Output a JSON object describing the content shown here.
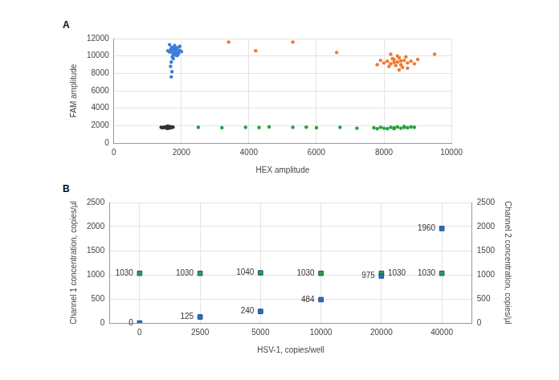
{
  "chart_data": [
    {
      "type": "scatter",
      "title": "A",
      "xlabel": "HEX amplitude",
      "ylabel": "FAM amplitude",
      "xlim": [
        0,
        10000
      ],
      "xticks": [
        0,
        2000,
        4000,
        6000,
        8000,
        10000
      ],
      "ylim": [
        0,
        12000
      ],
      "yticks": [
        0,
        2000,
        4000,
        6000,
        8000,
        10000,
        12000
      ],
      "grid": true,
      "series": [
        {
          "color": "#3b7dd8",
          "x": [
            1800,
            1750,
            1850,
            1700,
            1900,
            1780,
            1820,
            1650,
            1950,
            1720,
            1880,
            1760,
            1840,
            1690,
            1910,
            1800,
            1730,
            1870,
            1600,
            2000,
            1790,
            1810,
            1760,
            1700,
            1680,
            1720,
            1700,
            1650,
            1950,
            1830
          ],
          "y": [
            10500,
            10300,
            10700,
            10600,
            10400,
            10900,
            10100,
            10450,
            10650,
            11000,
            10950,
            10200,
            10550,
            10800,
            10250,
            11200,
            9900,
            10050,
            10600,
            10500,
            10750,
            10350,
            9700,
            9300,
            8800,
            8200,
            7600,
            11300,
            11100,
            10850
          ]
        },
        {
          "color": "#ef7a2e",
          "x": [
            8400,
            8200,
            8600,
            8300,
            8500,
            8100,
            8700,
            8350,
            8450,
            8000,
            8800,
            8250,
            8550,
            8400,
            8150,
            8650,
            7900,
            8900,
            8300,
            8500,
            8700,
            8200,
            7800,
            9000,
            8450,
            5300,
            3400,
            6600,
            4200,
            9500
          ],
          "y": [
            9300,
            9100,
            9500,
            9600,
            9000,
            9400,
            9200,
            8900,
            9800,
            9200,
            9400,
            9700,
            8700,
            10000,
            8800,
            9900,
            9500,
            9100,
            9250,
            9450,
            8600,
            10200,
            9000,
            9600,
            8400,
            11600,
            11600,
            10400,
            10600,
            10200
          ]
        },
        {
          "color": "#333333",
          "x": [
            1600,
            1550,
            1650,
            1500,
            1700,
            1580,
            1620,
            1450,
            1680,
            1530,
            1750,
            1600,
            1400,
            1660,
            1570
          ],
          "y": [
            1800,
            1750,
            1850,
            1820,
            1780,
            1900,
            1700,
            1760,
            1880,
            1850,
            1820,
            1950,
            1800,
            1740,
            1680
          ]
        },
        {
          "color": "#22a33a",
          "x": [
            8300,
            8000,
            8600,
            7800,
            8800,
            8200,
            8500,
            7700,
            8900,
            8100,
            8400,
            8700,
            7900,
            8300,
            8600,
            2500,
            3200,
            3900,
            4600,
            5300,
            6000,
            6700,
            7200,
            4300,
            5700
          ],
          "y": [
            1750,
            1700,
            1800,
            1650,
            1850,
            1800,
            1700,
            1750,
            1800,
            1650,
            1850,
            1750,
            1800,
            1650,
            1900,
            1800,
            1750,
            1800,
            1850,
            1800,
            1750,
            1800,
            1700,
            1780,
            1820
          ]
        }
      ]
    },
    {
      "type": "scatter",
      "title": "B",
      "xlabel": "HSV-1, copies/well",
      "ylabel": "Channel 1 concentration, copies/µl",
      "y2label": "Channel 2 concentration, copies/µl",
      "categories": [
        0,
        2500,
        5000,
        10000,
        20000,
        40000
      ],
      "ylim": [
        0,
        2500
      ],
      "yticks": [
        0,
        500,
        1000,
        1500,
        2000,
        2500
      ],
      "y2lim": [
        0,
        2500
      ],
      "y2ticks": [
        0,
        500,
        1000,
        1500,
        2000,
        2500
      ],
      "grid": true,
      "data_labels": true,
      "series": [
        {
          "color": "#2a6ebb",
          "values": [
            0,
            125,
            240,
            484,
            975,
            1960
          ]
        },
        {
          "color": "#2e9e4a",
          "axis": "y2",
          "values": [
            1030,
            1030,
            1040,
            1030,
            1030,
            1030
          ]
        }
      ]
    }
  ]
}
